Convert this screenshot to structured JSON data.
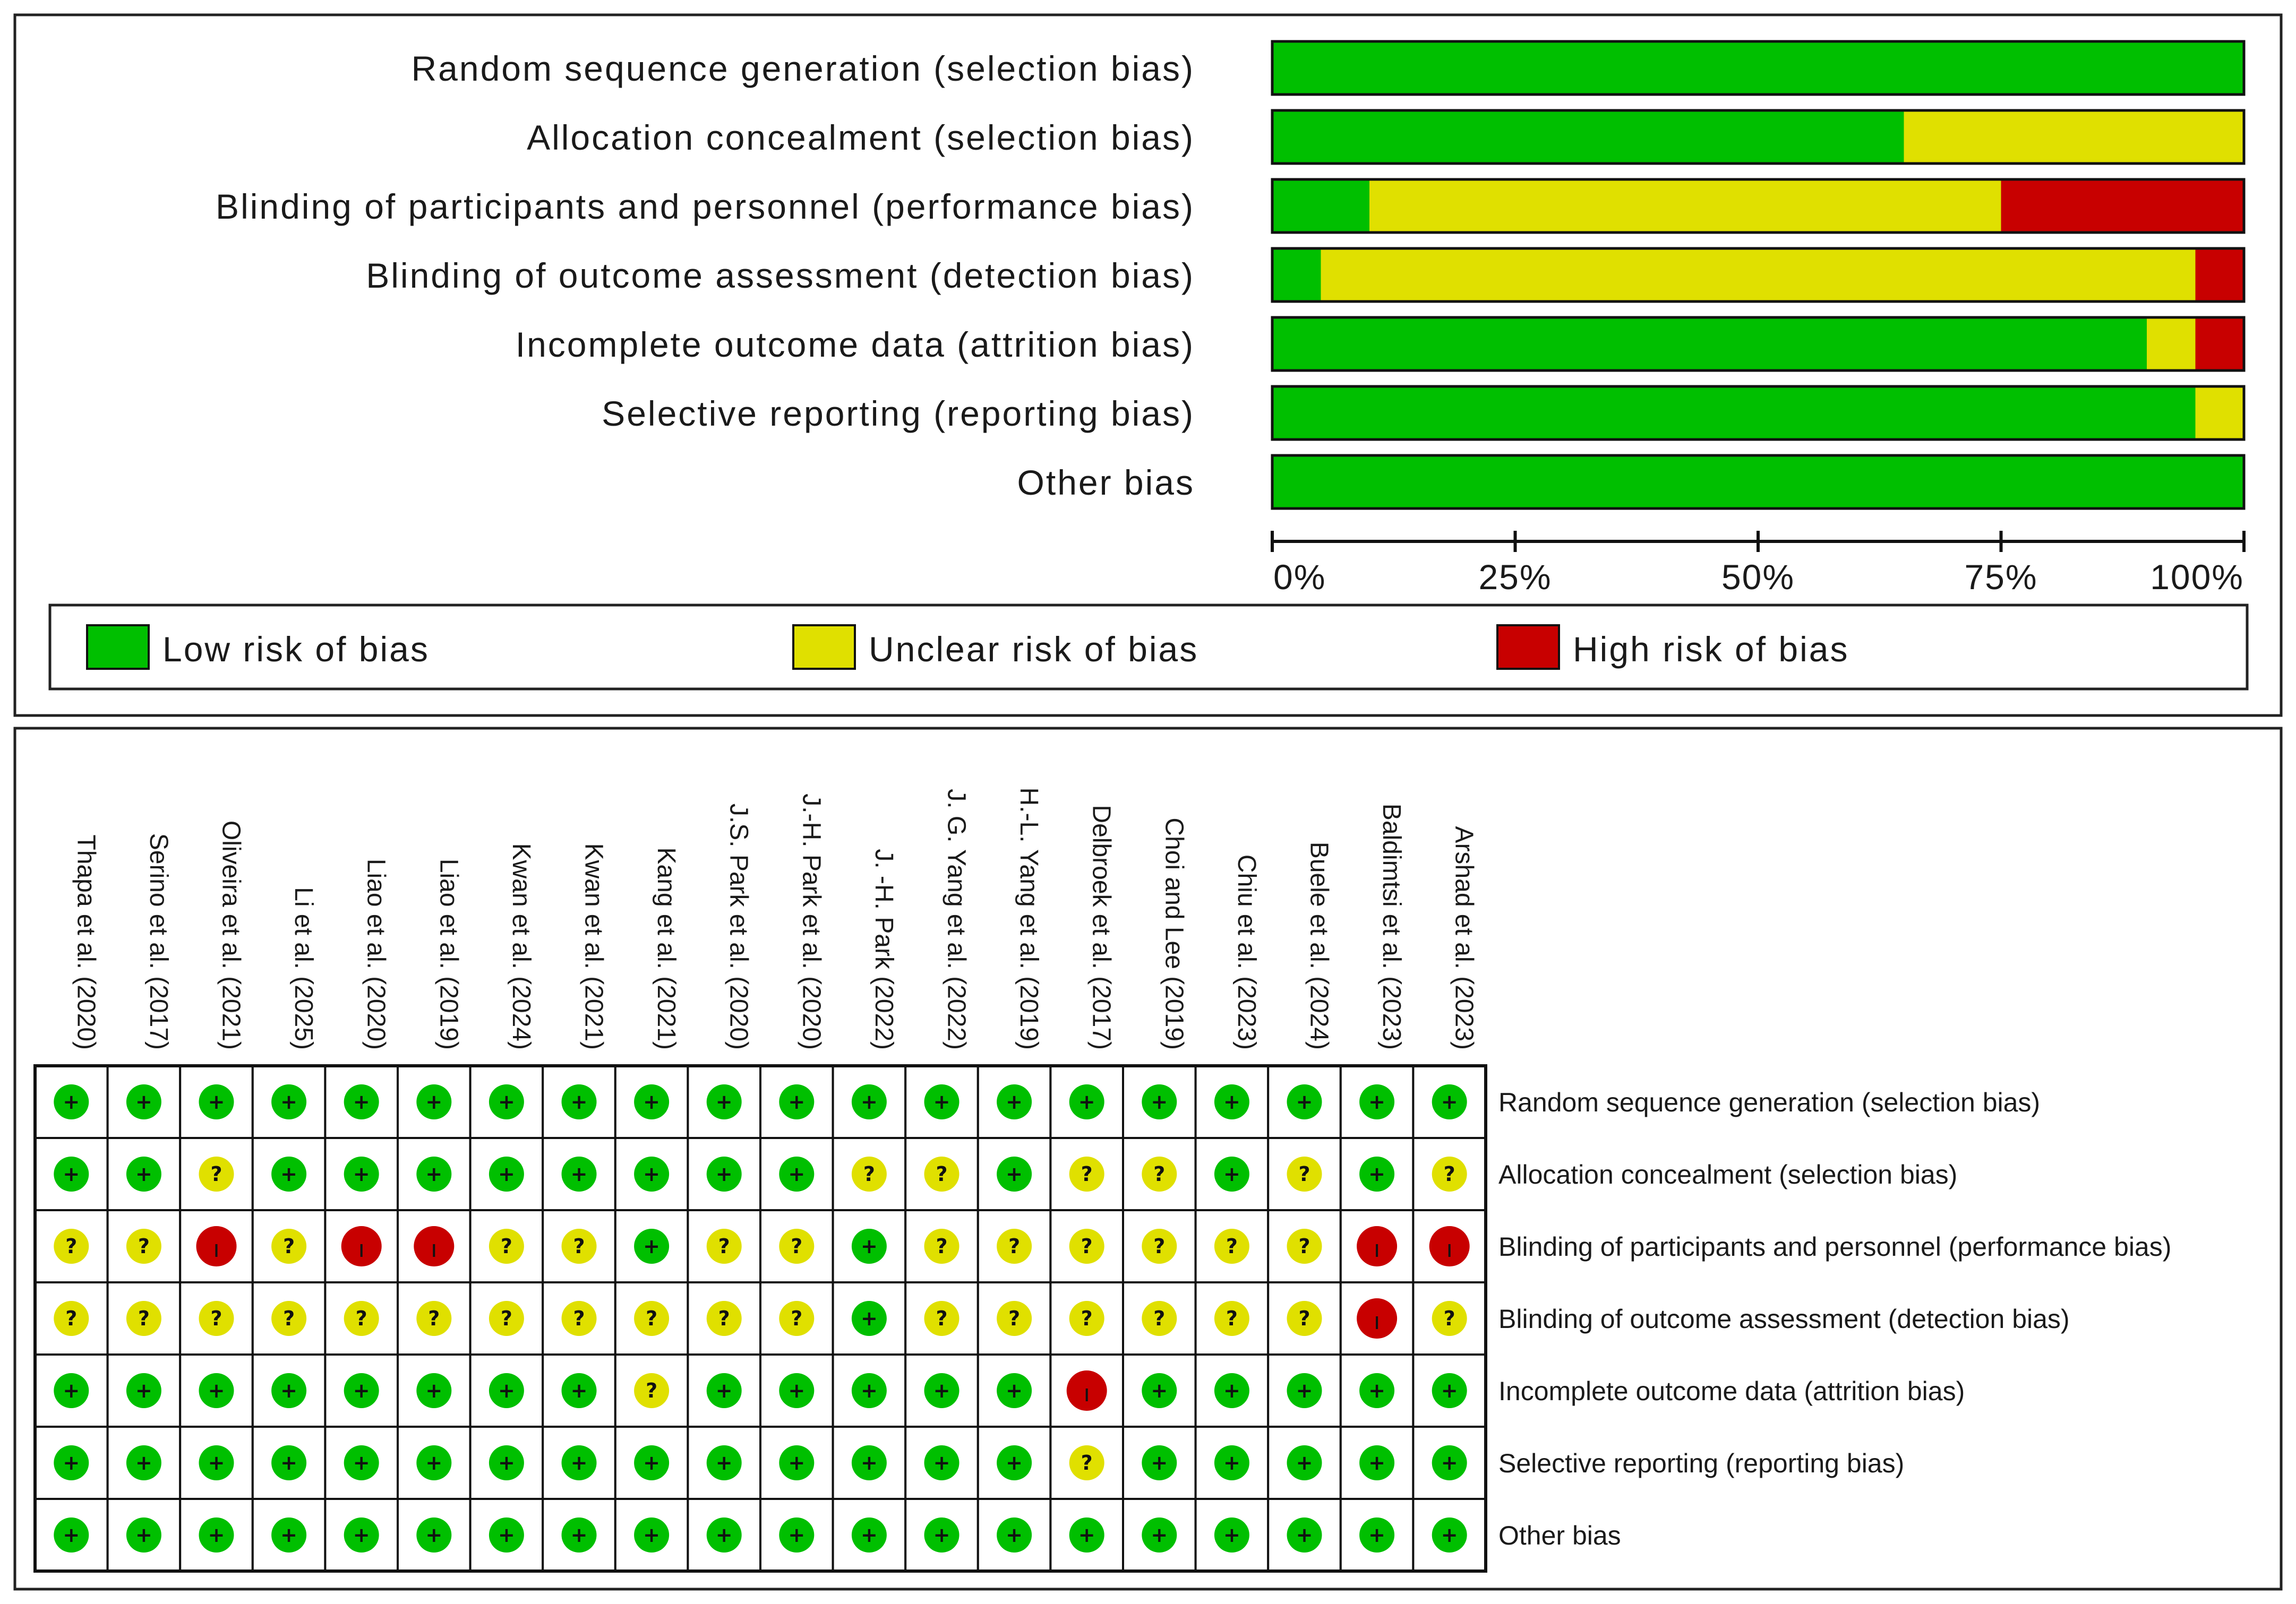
{
  "chart_data": [
    {
      "type": "bar",
      "subtype": "stacked-horizontal-percent",
      "categories": [
        "Random sequence generation (selection bias)",
        "Allocation concealment (selection bias)",
        "Blinding of participants and personnel (performance bias)",
        "Blinding of outcome assessment (detection bias)",
        "Incomplete outcome data (attrition bias)",
        "Selective reporting (reporting bias)",
        "Other bias"
      ],
      "series": [
        {
          "name": "Low risk of bias",
          "color": "#00bf00",
          "values": [
            100,
            65,
            10,
            5,
            90,
            95,
            100
          ]
        },
        {
          "name": "Unclear risk of bias",
          "color": "#e0e000",
          "values": [
            0,
            35,
            65,
            90,
            5,
            5,
            0
          ]
        },
        {
          "name": "High risk of bias",
          "color": "#c80000",
          "values": [
            0,
            0,
            25,
            5,
            5,
            0,
            0
          ]
        }
      ],
      "xlim": [
        0,
        100
      ],
      "xticks": [
        "0%",
        "25%",
        "50%",
        "75%",
        "100%"
      ],
      "legend": [
        "Low risk of bias",
        "Unclear risk of bias",
        "High risk of bias"
      ],
      "legend_position": "bottom"
    },
    {
      "type": "table",
      "subtype": "risk-of-bias-summary",
      "studies": [
        "Thapa et al. (2020)",
        "Serino et al. (2017)",
        "Oliveira et al. (2021)",
        "Li et al. (2025)",
        "Liao et al. (2020)",
        "Liao et al. (2019)",
        "Kwan et al. (2024)",
        "Kwan et al. (2021)",
        "Kang et al. (2021)",
        "J.S. Park et al. (2020)",
        "J.-H. Park et al. (2020)",
        "J. -H. Park (2022)",
        "J. G. Yang et al. (2022)",
        "H.-L. Yang et al. (2019)",
        "Delbroek et al. (2017)",
        "Choi and Lee (2019)",
        "Chiu et al. (2023)",
        "Buele et al. (2024)",
        "Baldimtsi et al. (2023)",
        "Arshad et al. (2023)"
      ],
      "domains": [
        "Random sequence generation (selection bias)",
        "Allocation concealment (selection bias)",
        "Blinding of participants and personnel (performance bias)",
        "Blinding of outcome assessment (detection bias)",
        "Incomplete outcome data (attrition bias)",
        "Selective reporting (reporting bias)",
        "Other bias"
      ],
      "judgements": [
        [
          "+",
          "+",
          "+",
          "+",
          "+",
          "+",
          "+",
          "+",
          "+",
          "+",
          "+",
          "+",
          "+",
          "+",
          "+",
          "+",
          "+",
          "+",
          "+",
          "+"
        ],
        [
          "+",
          "+",
          "?",
          "+",
          "+",
          "+",
          "+",
          "+",
          "+",
          "+",
          "+",
          "?",
          "?",
          "+",
          "?",
          "?",
          "+",
          "?",
          "+",
          "?"
        ],
        [
          "?",
          "?",
          "-",
          "?",
          "-",
          "-",
          "?",
          "?",
          "+",
          "?",
          "?",
          "+",
          "?",
          "?",
          "?",
          "?",
          "?",
          "?",
          "-",
          "-"
        ],
        [
          "?",
          "?",
          "?",
          "?",
          "?",
          "?",
          "?",
          "?",
          "?",
          "?",
          "?",
          "+",
          "?",
          "?",
          "?",
          "?",
          "?",
          "?",
          "-",
          "?"
        ],
        [
          "+",
          "+",
          "+",
          "+",
          "+",
          "+",
          "+",
          "+",
          "?",
          "+",
          "+",
          "+",
          "+",
          "+",
          "-",
          "+",
          "+",
          "+",
          "+",
          "+"
        ],
        [
          "+",
          "+",
          "+",
          "+",
          "+",
          "+",
          "+",
          "+",
          "+",
          "+",
          "+",
          "+",
          "+",
          "+",
          "?",
          "+",
          "+",
          "+",
          "+",
          "+"
        ],
        [
          "+",
          "+",
          "+",
          "+",
          "+",
          "+",
          "+",
          "+",
          "+",
          "+",
          "+",
          "+",
          "+",
          "+",
          "+",
          "+",
          "+",
          "+",
          "+",
          "+"
        ]
      ],
      "symbol_colors": {
        "+": "#00bf00",
        "?": "#e0e000",
        "-": "#c80000"
      }
    }
  ]
}
